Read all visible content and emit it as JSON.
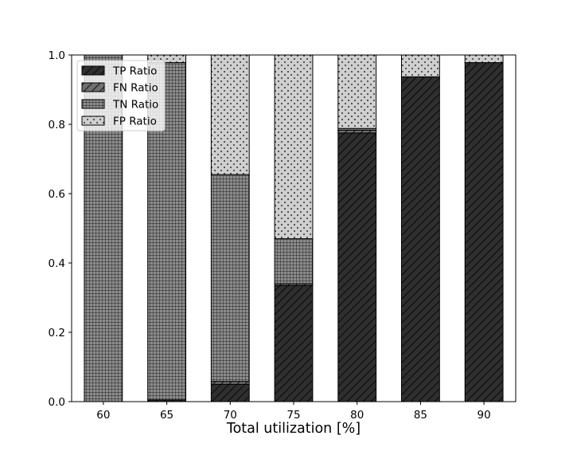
{
  "chart_data": {
    "type": "bar",
    "stacked": true,
    "title": "",
    "xlabel": "Total utilization [%]",
    "ylabel": "",
    "categories": [
      "60",
      "65",
      "70",
      "75",
      "80",
      "85",
      "90"
    ],
    "ylim": [
      0,
      1.0
    ],
    "yticks": [
      "0.0",
      "0.2",
      "0.4",
      "0.6",
      "0.8",
      "1.0"
    ],
    "grid": false,
    "legend_position": "top-left",
    "series": [
      {
        "name": "TP Ratio",
        "color": "#2f2f2f",
        "pattern": "diagonal-hatch",
        "values": [
          0.0,
          0.005,
          0.05,
          0.335,
          0.775,
          0.937,
          0.978
        ]
      },
      {
        "name": "FN Ratio",
        "color": "#707070",
        "pattern": "diagonal-hatch",
        "values": [
          0.0,
          0.0,
          0.008,
          0.005,
          0.008,
          0.0,
          0.0
        ]
      },
      {
        "name": "TN Ratio",
        "color": "#8c8c8c",
        "pattern": "grid-hatch",
        "values": [
          1.0,
          0.973,
          0.597,
          0.13,
          0.005,
          0.0,
          0.0
        ]
      },
      {
        "name": "FP Ratio",
        "color": "#cfcfcf",
        "pattern": "dots",
        "values": [
          0.0,
          0.022,
          0.345,
          0.53,
          0.212,
          0.063,
          0.022
        ]
      }
    ]
  }
}
